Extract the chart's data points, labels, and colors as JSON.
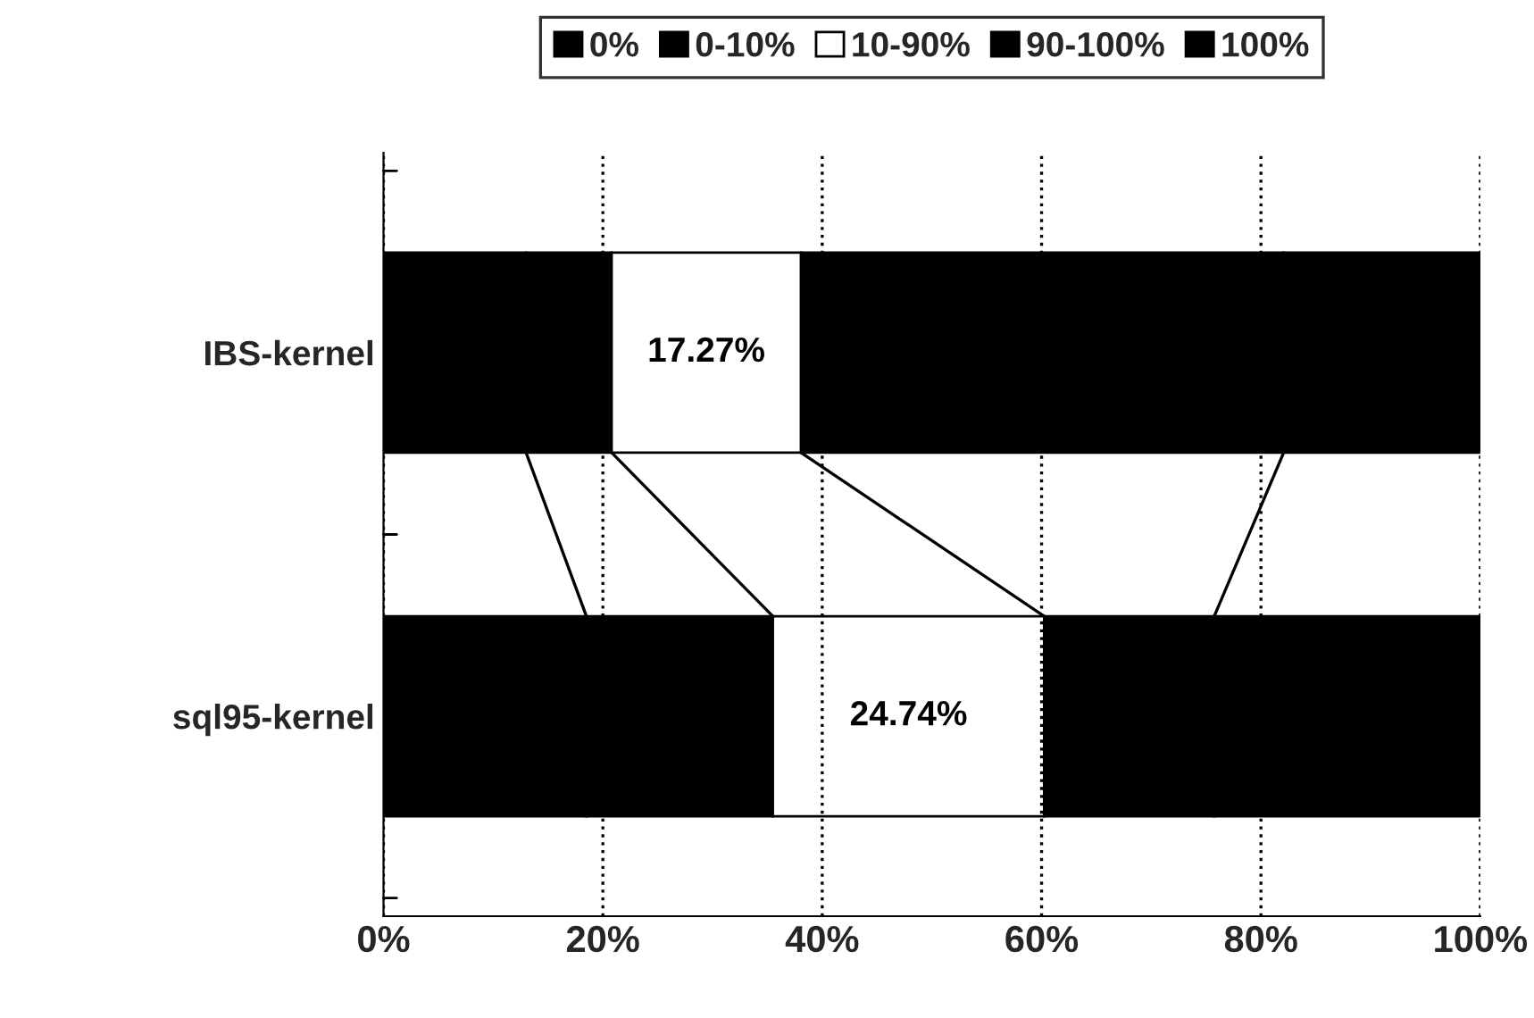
{
  "chart_data": {
    "type": "bar",
    "orientation": "horizontal",
    "stacked": true,
    "categories": [
      "IBS-kernel",
      "sql95-kernel"
    ],
    "series": [
      {
        "name": "0%",
        "color": "#000000",
        "values": [
          13,
          18.5
        ]
      },
      {
        "name": "0-10%",
        "color": "#000000",
        "values": [
          7.8,
          17
        ]
      },
      {
        "name": "10-90%",
        "color": "#ffffff",
        "values": [
          17.27,
          24.74
        ],
        "value_labels": [
          "17.27%",
          "24.74%"
        ]
      },
      {
        "name": "90-100%",
        "color": "#000000",
        "values": [
          44,
          15.5
        ]
      },
      {
        "name": "100%",
        "color": "#000000",
        "values": [
          17.93,
          24.26
        ]
      }
    ],
    "xlim": [
      0,
      100
    ],
    "xticks": [
      {
        "value": 0,
        "label": "0%"
      },
      {
        "value": 20,
        "label": "20%"
      },
      {
        "value": 40,
        "label": "40%"
      },
      {
        "value": 60,
        "label": "60%"
      },
      {
        "value": 80,
        "label": "80%"
      },
      {
        "value": 100,
        "label": "100%"
      }
    ],
    "grid": "x",
    "legend": "top"
  }
}
